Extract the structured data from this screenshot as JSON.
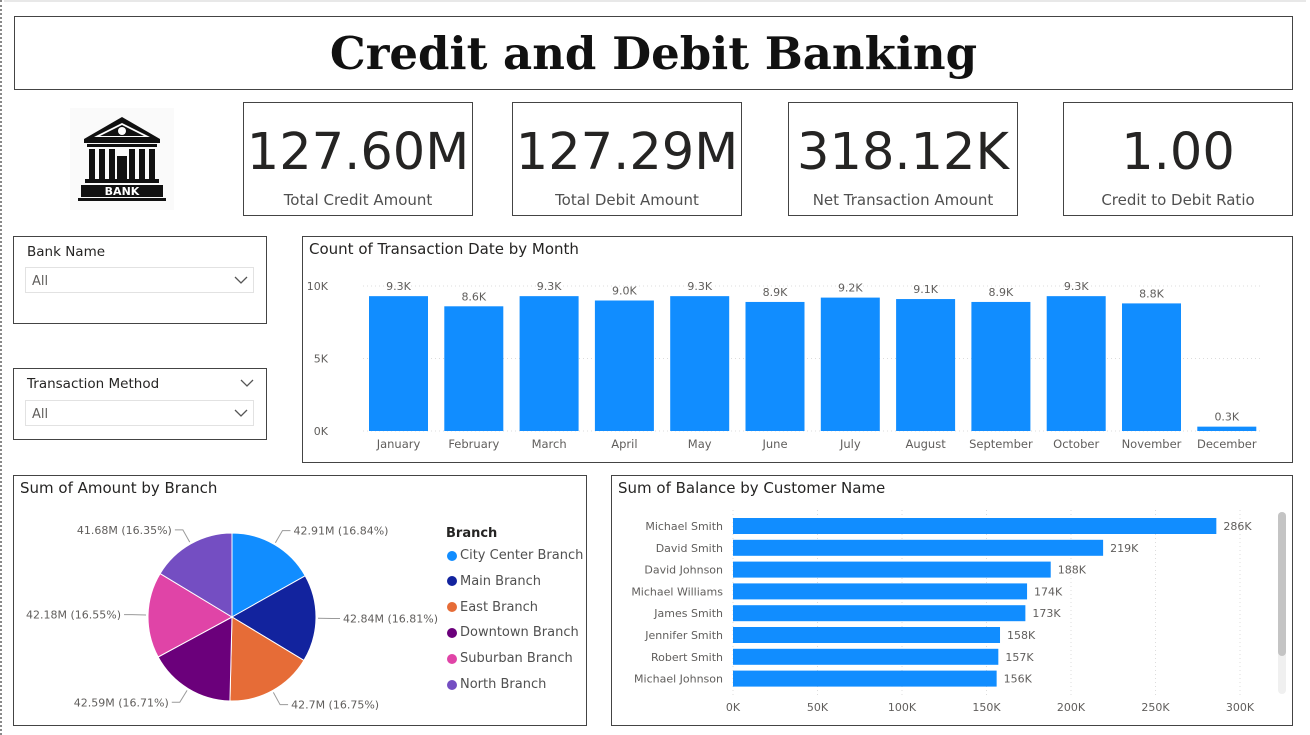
{
  "dashboard": {
    "title": "Credit and Debit Banking"
  },
  "logo": {
    "text": "BANK"
  },
  "kpis": [
    {
      "value": "127.60M",
      "label": "Total Credit Amount"
    },
    {
      "value": "127.29M",
      "label": "Total Debit Amount"
    },
    {
      "value": "318.12K",
      "label": "Net Transaction Amount"
    },
    {
      "value": "1.00",
      "label": "Credit to Debit Ratio"
    }
  ],
  "slicers": {
    "bank_name": {
      "title": "Bank Name",
      "value": "All"
    },
    "transaction_method": {
      "title": "Transaction Method",
      "value": "All"
    }
  },
  "colors": {
    "bar": "#118DFF",
    "pie": [
      "#118DFF",
      "#12239E",
      "#E66C37",
      "#6B007B",
      "#E044A7",
      "#744EC2"
    ]
  },
  "chart_data": [
    {
      "type": "bar",
      "title": "Count of Transaction Date by Month",
      "categories": [
        "January",
        "February",
        "March",
        "April",
        "May",
        "June",
        "July",
        "August",
        "September",
        "October",
        "November",
        "December"
      ],
      "values": [
        9.3,
        8.6,
        9.3,
        9.0,
        9.3,
        8.9,
        9.2,
        9.1,
        8.9,
        9.3,
        8.8,
        0.3
      ],
      "data_labels": [
        "9.3K",
        "8.6K",
        "9.3K",
        "9.0K",
        "9.3K",
        "8.9K",
        "9.2K",
        "9.1K",
        "8.9K",
        "9.3K",
        "8.8K",
        "0.3K"
      ],
      "y_ticks": [
        "0K",
        "5K",
        "10K"
      ],
      "y_tick_values": [
        0,
        5,
        10
      ],
      "ylim": [
        0,
        10.5
      ],
      "grid": true,
      "color": "#118DFF"
    },
    {
      "type": "pie",
      "title": "Sum of Amount by Branch",
      "legend_title": "Branch",
      "legend_position": "right",
      "categories": [
        "City Center Branch",
        "Main Branch",
        "East Branch",
        "Downtown Branch",
        "Suburban Branch",
        "North Branch"
      ],
      "values": [
        42.91,
        42.84,
        42.7,
        42.59,
        42.18,
        41.68
      ],
      "data_labels": [
        "42.91M (16.84%)",
        "42.84M (16.81%)",
        "42.7M (16.75%)",
        "42.59M (16.71%)",
        "42.18M (16.55%)",
        "41.68M (16.35%)"
      ],
      "colors": [
        "#118DFF",
        "#12239E",
        "#E66C37",
        "#6B007B",
        "#E044A7",
        "#744EC2"
      ]
    },
    {
      "type": "bar",
      "orientation": "horizontal",
      "title": "Sum of Balance by Customer Name",
      "categories": [
        "Michael Smith",
        "David Smith",
        "David Johnson",
        "Michael Williams",
        "James Smith",
        "Jennifer Smith",
        "Robert Smith",
        "Michael Johnson"
      ],
      "values": [
        286,
        219,
        188,
        174,
        173,
        158,
        157,
        156
      ],
      "data_labels": [
        "286K",
        "219K",
        "188K",
        "174K",
        "173K",
        "158K",
        "157K",
        "156K"
      ],
      "x_ticks": [
        "0K",
        "50K",
        "100K",
        "150K",
        "200K",
        "250K",
        "300K"
      ],
      "x_tick_values": [
        0,
        50,
        100,
        150,
        200,
        250,
        300
      ],
      "xlim": [
        0,
        300
      ],
      "grid": true,
      "color": "#118DFF"
    }
  ]
}
